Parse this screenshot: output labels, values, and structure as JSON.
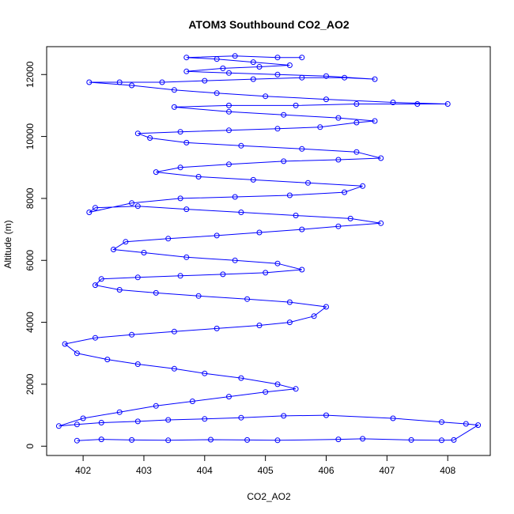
{
  "chart_data": {
    "type": "scatter",
    "title": "ATOM3 Southbound CO2_AO2",
    "xlabel": "CO2_AO2",
    "ylabel": "Altitude (m)",
    "xlim": [
      401.4,
      408.7
    ],
    "ylim": [
      -300,
      12900
    ],
    "xticks": [
      402,
      403,
      404,
      405,
      406,
      407,
      408
    ],
    "yticks": [
      0,
      2000,
      4000,
      6000,
      8000,
      10000,
      12000
    ],
    "marker": "open-circle",
    "connected": true,
    "grid": false,
    "series": [
      {
        "color": "#0000ff",
        "points": [
          [
            401.9,
            180
          ],
          [
            402.3,
            220
          ],
          [
            402.8,
            200
          ],
          [
            403.4,
            190
          ],
          [
            404.1,
            210
          ],
          [
            404.7,
            200
          ],
          [
            405.2,
            190
          ],
          [
            406.2,
            220
          ],
          [
            406.6,
            240
          ],
          [
            407.4,
            200
          ],
          [
            407.9,
            190
          ],
          [
            408.1,
            200
          ],
          [
            408.5,
            680
          ],
          [
            408.3,
            720
          ],
          [
            407.9,
            780
          ],
          [
            407.1,
            900
          ],
          [
            406.0,
            1000
          ],
          [
            405.3,
            980
          ],
          [
            404.6,
            920
          ],
          [
            404.0,
            880
          ],
          [
            403.4,
            850
          ],
          [
            402.9,
            800
          ],
          [
            402.3,
            760
          ],
          [
            401.9,
            700
          ],
          [
            401.6,
            650
          ],
          [
            402.0,
            900
          ],
          [
            402.6,
            1100
          ],
          [
            403.2,
            1300
          ],
          [
            403.8,
            1450
          ],
          [
            404.4,
            1600
          ],
          [
            405.0,
            1750
          ],
          [
            405.5,
            1850
          ],
          [
            405.2,
            2000
          ],
          [
            404.6,
            2200
          ],
          [
            404.0,
            2350
          ],
          [
            403.5,
            2500
          ],
          [
            402.9,
            2650
          ],
          [
            402.4,
            2800
          ],
          [
            401.9,
            3000
          ],
          [
            401.7,
            3300
          ],
          [
            402.2,
            3500
          ],
          [
            402.8,
            3600
          ],
          [
            403.5,
            3700
          ],
          [
            404.2,
            3800
          ],
          [
            404.9,
            3900
          ],
          [
            405.4,
            4000
          ],
          [
            405.8,
            4200
          ],
          [
            406.0,
            4500
          ],
          [
            405.4,
            4650
          ],
          [
            404.7,
            4750
          ],
          [
            403.9,
            4850
          ],
          [
            403.2,
            4950
          ],
          [
            402.6,
            5050
          ],
          [
            402.2,
            5200
          ],
          [
            402.3,
            5400
          ],
          [
            402.9,
            5450
          ],
          [
            403.6,
            5500
          ],
          [
            404.3,
            5550
          ],
          [
            405.0,
            5600
          ],
          [
            405.6,
            5700
          ],
          [
            405.2,
            5900
          ],
          [
            404.5,
            6000
          ],
          [
            403.7,
            6100
          ],
          [
            403.0,
            6250
          ],
          [
            402.5,
            6350
          ],
          [
            402.7,
            6600
          ],
          [
            403.4,
            6700
          ],
          [
            404.2,
            6800
          ],
          [
            404.9,
            6900
          ],
          [
            405.6,
            7000
          ],
          [
            406.2,
            7100
          ],
          [
            406.9,
            7200
          ],
          [
            406.4,
            7350
          ],
          [
            405.5,
            7450
          ],
          [
            404.6,
            7550
          ],
          [
            403.7,
            7650
          ],
          [
            402.9,
            7750
          ],
          [
            402.2,
            7700
          ],
          [
            402.1,
            7550
          ],
          [
            402.8,
            7850
          ],
          [
            403.6,
            8000
          ],
          [
            404.5,
            8050
          ],
          [
            405.4,
            8100
          ],
          [
            406.3,
            8200
          ],
          [
            406.6,
            8400
          ],
          [
            405.7,
            8500
          ],
          [
            404.8,
            8600
          ],
          [
            403.9,
            8700
          ],
          [
            403.2,
            8850
          ],
          [
            403.6,
            9000
          ],
          [
            404.4,
            9100
          ],
          [
            405.3,
            9200
          ],
          [
            406.2,
            9250
          ],
          [
            406.9,
            9300
          ],
          [
            406.5,
            9500
          ],
          [
            405.6,
            9600
          ],
          [
            404.6,
            9700
          ],
          [
            403.7,
            9800
          ],
          [
            403.1,
            9950
          ],
          [
            402.9,
            10100
          ],
          [
            403.6,
            10150
          ],
          [
            404.4,
            10200
          ],
          [
            405.2,
            10250
          ],
          [
            405.9,
            10300
          ],
          [
            406.5,
            10450
          ],
          [
            406.8,
            10500
          ],
          [
            406.2,
            10600
          ],
          [
            405.3,
            10700
          ],
          [
            404.4,
            10800
          ],
          [
            403.5,
            10950
          ],
          [
            404.4,
            11000
          ],
          [
            405.5,
            11000
          ],
          [
            406.5,
            11050
          ],
          [
            407.5,
            11050
          ],
          [
            408.0,
            11050
          ],
          [
            407.1,
            11100
          ],
          [
            406.0,
            11200
          ],
          [
            405.0,
            11300
          ],
          [
            404.2,
            11400
          ],
          [
            403.5,
            11500
          ],
          [
            402.8,
            11650
          ],
          [
            402.1,
            11750
          ],
          [
            402.6,
            11750
          ],
          [
            403.3,
            11750
          ],
          [
            404.0,
            11800
          ],
          [
            404.8,
            11850
          ],
          [
            405.6,
            11900
          ],
          [
            406.3,
            11900
          ],
          [
            406.8,
            11850
          ],
          [
            406.0,
            11950
          ],
          [
            405.2,
            12000
          ],
          [
            404.4,
            12050
          ],
          [
            403.7,
            12100
          ],
          [
            404.3,
            12200
          ],
          [
            404.9,
            12250
          ],
          [
            405.4,
            12300
          ],
          [
            404.8,
            12400
          ],
          [
            404.2,
            12500
          ],
          [
            403.7,
            12550
          ],
          [
            404.5,
            12600
          ],
          [
            405.2,
            12550
          ],
          [
            405.6,
            12550
          ]
        ]
      }
    ]
  }
}
